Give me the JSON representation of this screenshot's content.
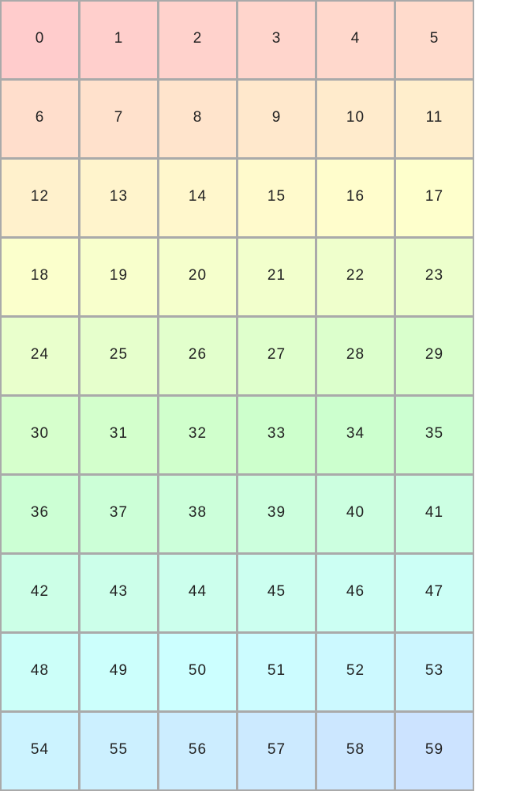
{
  "grid": {
    "columns": 6,
    "border_color": "#aaaaaa",
    "text_color": "#222222",
    "color_scheme": "pastel hue gradient from red (#ffcccc) to blue (#cce0ff)",
    "cells": [
      "0",
      "1",
      "2",
      "3",
      "4",
      "5",
      "6",
      "7",
      "8",
      "9",
      "10",
      "11",
      "12",
      "13",
      "14",
      "15",
      "16",
      "17",
      "18",
      "19",
      "20",
      "21",
      "22",
      "23",
      "24",
      "25",
      "26",
      "27",
      "28",
      "29",
      "30",
      "31",
      "32",
      "33",
      "34",
      "35",
      "36",
      "37",
      "38",
      "39",
      "40",
      "41",
      "42",
      "43",
      "44",
      "45",
      "46",
      "47",
      "48",
      "49",
      "50",
      "51",
      "52",
      "53",
      "54",
      "55",
      "56",
      "57",
      "58",
      "59"
    ]
  }
}
